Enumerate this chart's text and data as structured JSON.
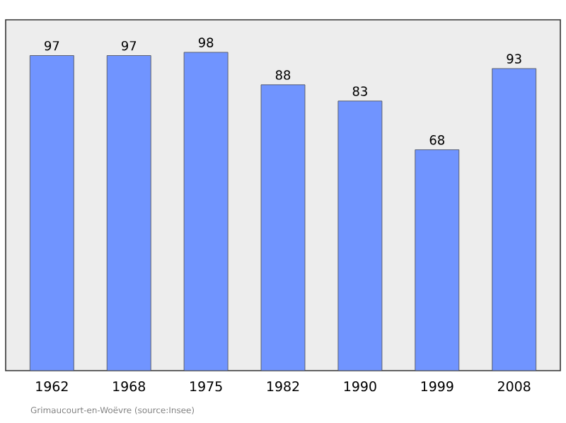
{
  "chart_data": {
    "type": "bar",
    "categories": [
      "1962",
      "1968",
      "1975",
      "1982",
      "1990",
      "1999",
      "2008"
    ],
    "values": [
      97,
      97,
      98,
      88,
      83,
      68,
      93
    ],
    "color": "#7094ff",
    "ylim": [
      0,
      108
    ],
    "data_labels": true,
    "tick_labels": "x",
    "annotations": [
      "Grimaucourt-en-Woëvre (source:Insee)"
    ]
  }
}
